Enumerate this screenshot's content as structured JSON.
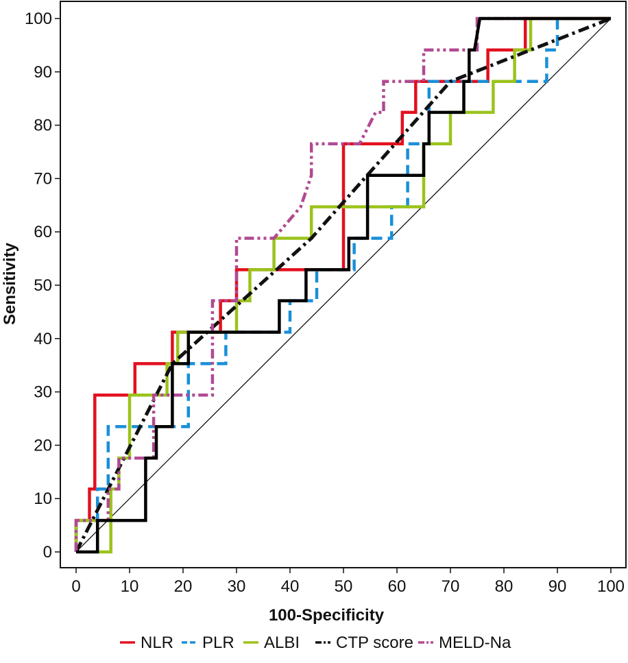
{
  "chart_data": {
    "type": "line",
    "title": "",
    "xlabel": "100-Specificity",
    "ylabel": "Sensitivity",
    "xlim": [
      0,
      100
    ],
    "ylim": [
      0,
      100
    ],
    "xticks": [
      0,
      10,
      20,
      30,
      40,
      50,
      60,
      70,
      80,
      90,
      100
    ],
    "yticks": [
      0,
      10,
      20,
      30,
      40,
      50,
      60,
      70,
      80,
      90,
      100
    ],
    "grid": false,
    "legend_position": "bottom",
    "reference_line": {
      "x": [
        0,
        100
      ],
      "y": [
        0,
        100
      ]
    },
    "series": [
      {
        "name": "NLR",
        "color": "#e3101f",
        "dash": "solid",
        "x": [
          0,
          0,
          2.5,
          2.5,
          3.5,
          3.5,
          11,
          11,
          18,
          18,
          27,
          27,
          30,
          30,
          50,
          50,
          53,
          53,
          61,
          61,
          62,
          62,
          63.5,
          63.5,
          77,
          77,
          84,
          84,
          100
        ],
        "y": [
          0,
          5.9,
          5.9,
          11.8,
          11.8,
          29.4,
          29.4,
          35.3,
          35.3,
          41.2,
          41.2,
          47.1,
          47.1,
          52.9,
          52.9,
          76.5,
          76.5,
          76.5,
          76.5,
          82.4,
          82.4,
          82.4,
          82.4,
          88.2,
          88.2,
          94.1,
          94.1,
          100,
          100
        ]
      },
      {
        "name": "PLR",
        "color": "#1a8fd8",
        "dash": "dashed",
        "x": [
          0,
          0,
          4,
          4,
          6,
          6,
          21,
          21,
          28,
          28,
          40,
          40,
          45,
          45,
          52,
          52,
          59,
          59,
          62,
          62,
          66,
          66,
          88,
          88,
          90,
          90,
          100
        ],
        "y": [
          0,
          5.9,
          5.9,
          11.8,
          11.8,
          23.5,
          23.5,
          35.3,
          35.3,
          41.2,
          41.2,
          47.1,
          47.1,
          52.9,
          52.9,
          58.8,
          58.8,
          64.7,
          64.7,
          76.5,
          76.5,
          88.2,
          88.2,
          94.1,
          94.1,
          100,
          100
        ]
      },
      {
        "name": "ALBI",
        "color": "#9bc31c",
        "dash": "solid",
        "x": [
          0,
          0,
          4,
          4,
          6.5,
          6.5,
          8,
          8,
          10,
          10,
          17,
          17,
          19,
          19,
          30,
          30,
          32.5,
          32.5,
          37,
          37,
          38.5,
          38.5,
          44,
          44,
          45,
          45,
          65,
          65,
          70,
          70,
          78,
          78,
          82,
          82,
          85,
          85,
          100
        ],
        "y": [
          0,
          5.9,
          5.9,
          0,
          0,
          11.8,
          11.8,
          17.6,
          17.6,
          29.4,
          29.4,
          35.3,
          35.3,
          41.2,
          41.2,
          47.1,
          47.1,
          52.9,
          52.9,
          58.8,
          58.8,
          58.8,
          58.8,
          64.7,
          64.7,
          64.7,
          64.7,
          76.5,
          76.5,
          82.4,
          82.4,
          88.2,
          88.2,
          94.1,
          94.1,
          100,
          100
        ]
      },
      {
        "name": "CTP score",
        "color": "#111111",
        "dash": "dashdot",
        "x": [
          0,
          18,
          44,
          70,
          100
        ],
        "y": [
          0,
          35.3,
          58.8,
          88.2,
          100
        ]
      },
      {
        "name": "MELD-Na",
        "color": "#b04a92",
        "dash": "dashdotdot",
        "x": [
          0,
          0,
          6,
          6,
          8,
          8,
          14.5,
          14.5,
          18,
          18,
          25.5,
          25.5,
          30,
          30,
          37,
          42,
          44,
          44,
          53,
          56,
          56,
          57.5,
          57.5,
          65,
          65,
          75,
          75,
          100
        ],
        "y": [
          0,
          5.9,
          5.9,
          11.8,
          11.8,
          17.6,
          17.6,
          29.4,
          29.4,
          29.4,
          29.4,
          47.1,
          47.1,
          58.8,
          58.8,
          64.7,
          70.6,
          76.5,
          76.5,
          82.4,
          82.4,
          82.4,
          88.2,
          88.2,
          94.1,
          94.1,
          100,
          100
        ]
      },
      {
        "name": "",
        "color": "#000000",
        "dash": "solid",
        "hidden_label": true,
        "x": [
          0,
          4,
          4,
          9.5,
          13,
          13,
          15,
          15,
          18,
          18,
          21,
          21,
          38,
          38,
          43,
          43,
          51,
          51,
          54.5,
          54.5,
          65,
          65,
          66,
          66,
          72.5,
          72.5,
          73.5,
          73.5,
          74.5,
          75.5,
          100
        ],
        "y": [
          0,
          0,
          5.9,
          5.9,
          5.9,
          17.6,
          17.6,
          23.5,
          23.5,
          35.3,
          35.3,
          41.2,
          41.2,
          47.1,
          47.1,
          52.9,
          52.9,
          58.8,
          58.8,
          70.6,
          70.6,
          76.5,
          76.5,
          82.4,
          82.4,
          88.2,
          88.2,
          94.1,
          94.1,
          100,
          100
        ]
      }
    ],
    "legend": [
      "NLR",
      "PLR",
      "ALBI",
      "CTP score",
      "MELD-Na"
    ]
  }
}
